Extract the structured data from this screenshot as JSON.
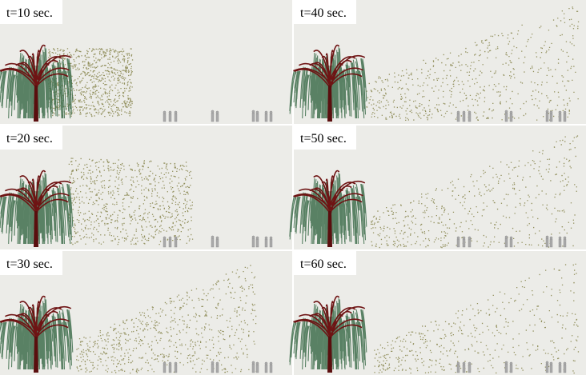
{
  "panels": [
    {
      "label": "t=10 sec."
    },
    {
      "label": "t=40 sec."
    },
    {
      "label": "t=20 sec."
    },
    {
      "label": "t=50 sec."
    },
    {
      "label": "t=30 sec."
    },
    {
      "label": "t=60 sec."
    }
  ]
}
